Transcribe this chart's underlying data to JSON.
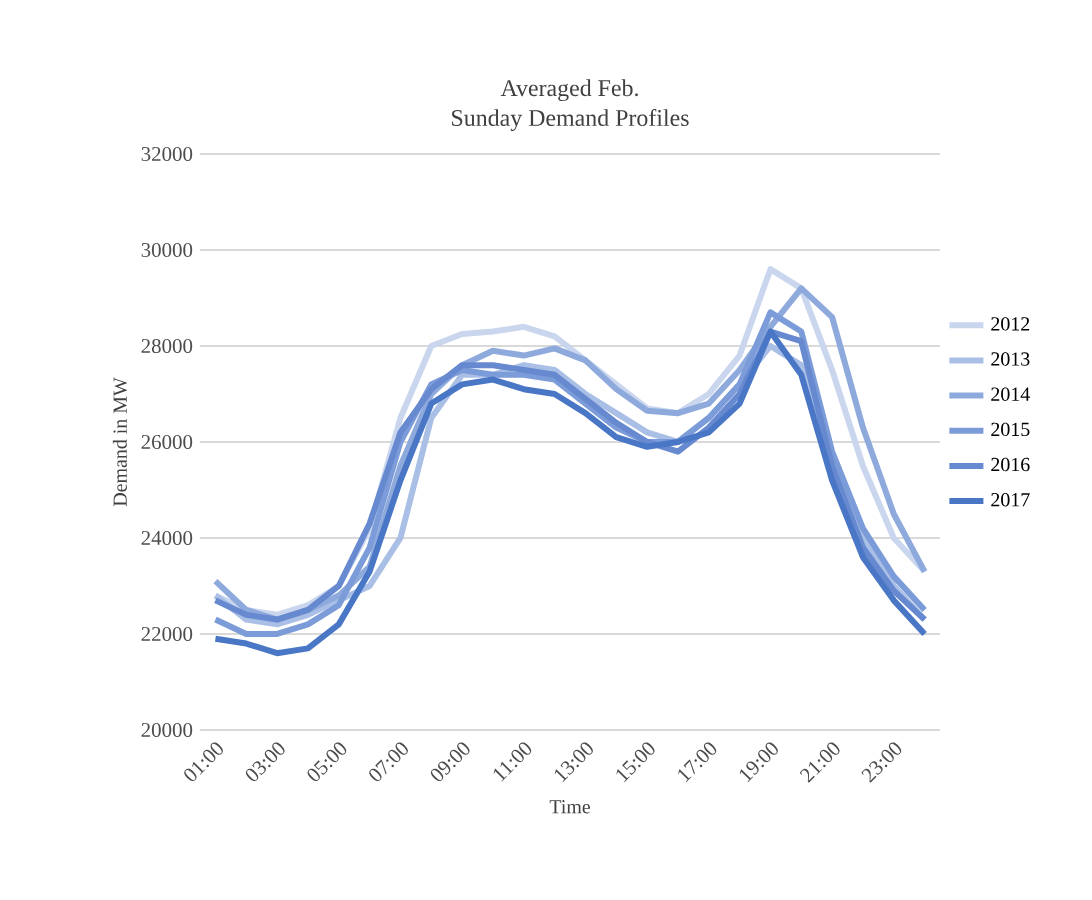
{
  "chart_data": {
    "type": "line",
    "title": "Averaged Feb.",
    "subtitle": "Sunday Demand Profiles",
    "xlabel": "Time",
    "ylabel": "Demand in MW",
    "categories": [
      "01:00",
      null,
      "03:00",
      null,
      "05:00",
      null,
      "07:00",
      null,
      "09:00",
      null,
      "11:00",
      null,
      "13:00",
      null,
      "15:00",
      null,
      "17:00",
      null,
      "19:00",
      null,
      "21:00",
      null,
      "23:00",
      null
    ],
    "ylim": [
      20000,
      32000
    ],
    "yticks": [
      20000,
      22000,
      24000,
      26000,
      28000,
      30000,
      32000
    ],
    "grid": "y",
    "legend": "right",
    "marker": "none",
    "line_style": "solid",
    "series": [
      {
        "name": "2012",
        "color": "#c9d6ee",
        "values": [
          22800,
          22500,
          22400,
          22600,
          23000,
          24200,
          26500,
          28000,
          28250,
          28300,
          28400,
          28200,
          27700,
          27200,
          26700,
          26600,
          27000,
          27800,
          29600,
          29200,
          27500,
          25500,
          24000,
          23300
        ]
      },
      {
        "name": "2013",
        "color": "#a9bfe6",
        "values": [
          22800,
          22300,
          22200,
          22400,
          22700,
          23000,
          24000,
          26500,
          27400,
          27400,
          27600,
          27500,
          27000,
          26600,
          26200,
          26000,
          26500,
          27200,
          28000,
          27600,
          25500,
          24000,
          23000,
          22300
        ]
      },
      {
        "name": "2014",
        "color": "#8eaadc",
        "values": [
          23100,
          22500,
          22300,
          22500,
          22800,
          23400,
          25500,
          27000,
          27600,
          27900,
          27800,
          27950,
          27700,
          27100,
          26650,
          26600,
          26800,
          27500,
          28400,
          29200,
          28600,
          26300,
          24500,
          23300
        ]
      },
      {
        "name": "2015",
        "color": "#7b9cd8",
        "values": [
          22300,
          22000,
          22000,
          22200,
          22600,
          23800,
          26000,
          27200,
          27500,
          27400,
          27400,
          27300,
          26800,
          26300,
          26000,
          26000,
          26500,
          27200,
          28700,
          28300,
          25800,
          24200,
          23200,
          22500
        ]
      },
      {
        "name": "2016",
        "color": "#6689d0",
        "values": [
          22700,
          22400,
          22300,
          22500,
          23000,
          24300,
          26200,
          27100,
          27600,
          27600,
          27500,
          27400,
          26900,
          26400,
          26000,
          25800,
          26300,
          27000,
          28300,
          28100,
          25500,
          23800,
          22900,
          22300
        ]
      },
      {
        "name": "2017",
        "color": "#4a76c6",
        "values": [
          21900,
          21800,
          21600,
          21700,
          22200,
          23300,
          25200,
          26800,
          27200,
          27300,
          27100,
          27000,
          26600,
          26100,
          25900,
          26000,
          26200,
          26800,
          28300,
          27400,
          25200,
          23600,
          22700,
          22000
        ]
      }
    ]
  }
}
